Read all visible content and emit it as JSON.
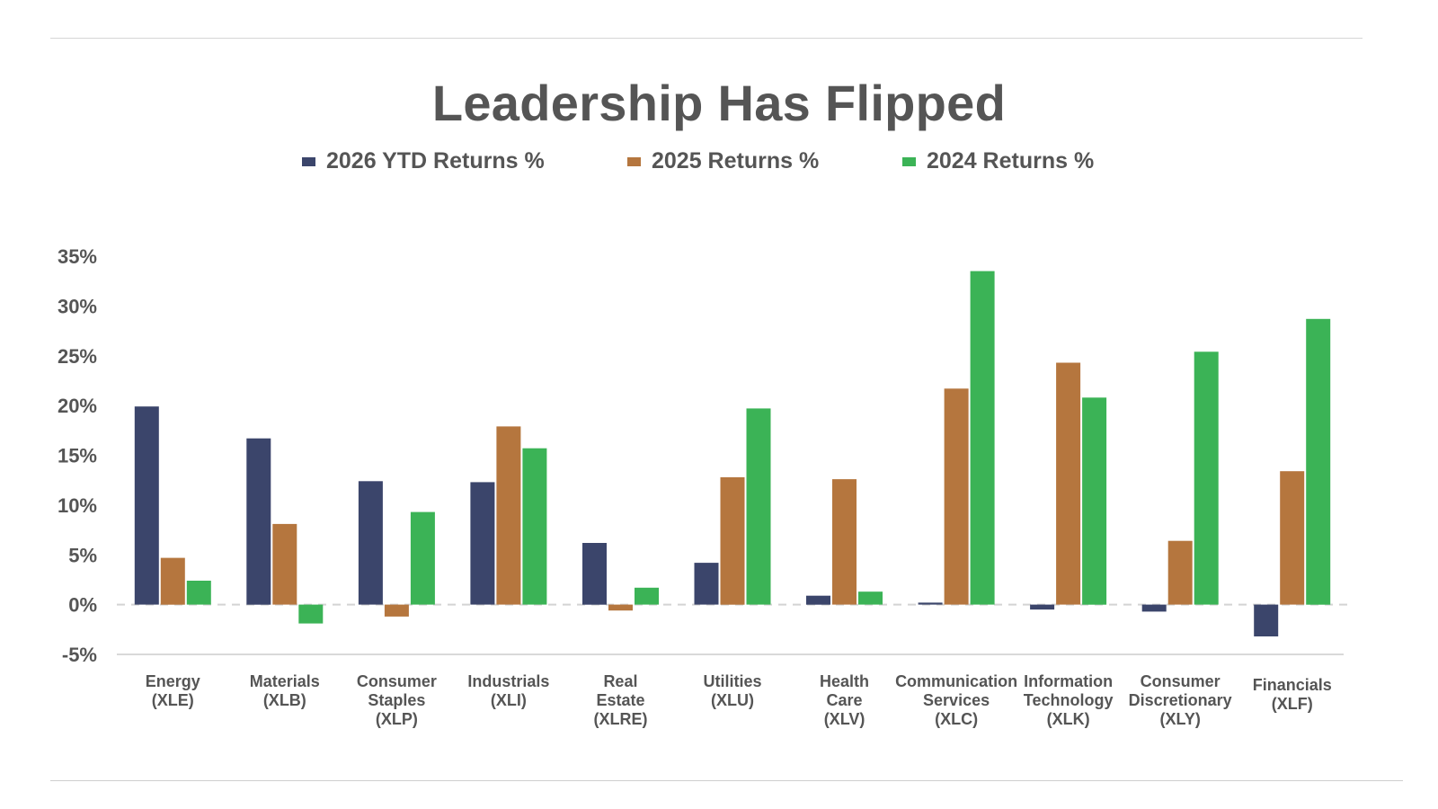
{
  "chart_data": {
    "type": "bar",
    "title": "Leadership Has Flipped",
    "xlabel": "",
    "ylabel": "",
    "ylim": [
      -5,
      35
    ],
    "yticks": [
      35,
      30,
      25,
      20,
      15,
      10,
      5,
      0,
      -5
    ],
    "ytick_labels": [
      "35%",
      "30%",
      "25%",
      "20%",
      "15%",
      "10%",
      "5%",
      "0%",
      "-5%"
    ],
    "categories": [
      [
        "Energy",
        "(XLE)"
      ],
      [
        "Materials",
        "(XLB)"
      ],
      [
        "Consumer",
        "Staples",
        "(XLP)"
      ],
      [
        "Industrials",
        "(XLI)"
      ],
      [
        "Real",
        "Estate",
        "(XLRE)"
      ],
      [
        "Utilities",
        "(XLU)"
      ],
      [
        "Health",
        "Care",
        "(XLV)"
      ],
      [
        "Communication",
        "Services",
        "(XLC)"
      ],
      [
        "Information",
        "Technology",
        "(XLK)"
      ],
      [
        "Consumer",
        "Discretionary",
        "(XLY)"
      ],
      [
        "Financials",
        "(XLF)"
      ]
    ],
    "series": [
      {
        "name": "2026 YTD Returns %",
        "color": "#3b456b",
        "values": [
          19.9,
          16.7,
          12.4,
          12.3,
          6.2,
          4.2,
          0.9,
          0.2,
          -0.5,
          -0.7,
          -3.2
        ]
      },
      {
        "name": "2025 Returns %",
        "color": "#b5763e",
        "values": [
          4.7,
          8.1,
          -1.2,
          17.9,
          -0.6,
          12.8,
          12.6,
          21.7,
          24.3,
          6.4,
          13.4
        ]
      },
      {
        "name": "2024 Returns %",
        "color": "#3bb356",
        "values": [
          2.4,
          -1.9,
          9.3,
          15.7,
          1.7,
          19.7,
          1.3,
          33.5,
          20.8,
          25.4,
          28.7
        ]
      }
    ],
    "legend_position": "top-center",
    "grid": false,
    "zero_line": "dashed"
  }
}
